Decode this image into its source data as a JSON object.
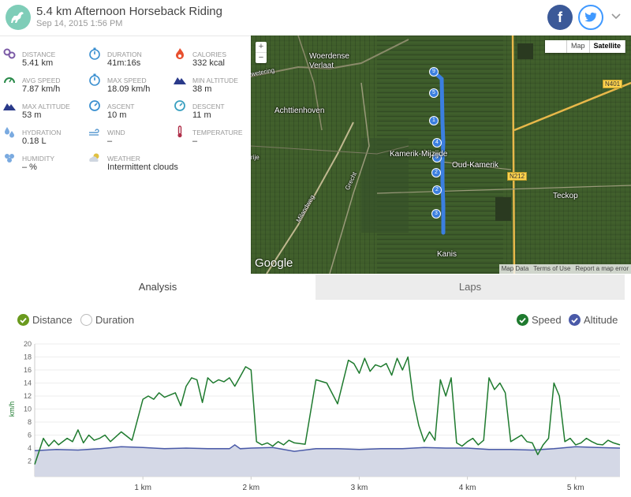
{
  "header": {
    "title": "5.4 km Afternoon Horseback Riding",
    "date": "Sep 14, 2015 1:56 PM",
    "facebook_label": "f"
  },
  "stats": [
    {
      "label": "DISTANCE",
      "value": "5.41 km",
      "icon": "distance-icon",
      "color": "#7b5aa6"
    },
    {
      "label": "DURATION",
      "value": "41m:16s",
      "icon": "stopwatch-icon",
      "color": "#3a8fd0"
    },
    {
      "label": "CALORIES",
      "value": "332 kcal",
      "icon": "flame-icon",
      "color": "#e8502f"
    },
    {
      "label": "AVG SPEED",
      "value": "7.87 km/h",
      "icon": "speedometer-icon",
      "color": "#2a8a4a"
    },
    {
      "label": "MAX SPEED",
      "value": "18.09 km/h",
      "icon": "stopwatch-icon",
      "color": "#3a8fd0"
    },
    {
      "label": "MIN ALTITUDE",
      "value": "38 m",
      "icon": "mountain-icon",
      "color": "#2a3a8a"
    },
    {
      "label": "MAX ALTITUDE",
      "value": "53 m",
      "icon": "mountain-icon",
      "color": "#2a3a8a"
    },
    {
      "label": "ASCENT",
      "value": "10 m",
      "icon": "gauge-icon",
      "color": "#3a8fd0"
    },
    {
      "label": "DESCENT",
      "value": "11 m",
      "icon": "gauge-icon",
      "color": "#3aa0c0"
    },
    {
      "label": "HYDRATION",
      "value": "0.18 L",
      "icon": "drops-icon",
      "color": "#7aaae0"
    },
    {
      "label": "WIND",
      "value": "–",
      "icon": "wind-icon",
      "color": "#5a9ad0"
    },
    {
      "label": "TEMPERATURE",
      "value": "–",
      "icon": "thermometer-icon",
      "color": "#b0304a"
    },
    {
      "label": "HUMIDITY",
      "value": "– %",
      "icon": "humidity-icon",
      "color": "#7aaae0"
    },
    {
      "label": "WEATHER",
      "value": "Intermittent clouds",
      "icon": "cloud-sun-icon",
      "color": "#e0c040"
    }
  ],
  "map": {
    "zoom_in": "+",
    "zoom_out": "−",
    "map_label": "Map",
    "satellite_label": "Satellite",
    "google": "Google",
    "footer": [
      "Map Data",
      "Terms of Use",
      "Report a map error"
    ],
    "places": [
      "Woerdense Verlaat",
      "Achttienhoven",
      "Kamerik-Mijzijde",
      "Oud-Kamerik",
      "Teckop",
      "Kanis",
      "Milandweg",
      "Grecht",
      "wetering",
      "rije"
    ],
    "road_signs": [
      "N401",
      "N212"
    ],
    "markers": [
      "9",
      "5",
      "1",
      "4",
      "8",
      "2",
      "2",
      "3"
    ]
  },
  "tabs": {
    "analysis": "Analysis",
    "laps": "Laps"
  },
  "controls": {
    "distance": "Distance",
    "duration": "Duration",
    "speed": "Speed",
    "altitude": "Altitude"
  },
  "colors": {
    "speed": "#1e7a2e",
    "altitude": "#4a5aa8",
    "altitude_fill": "#d4d8e6",
    "check_green": "#6a9a1e",
    "check_blue": "#4a5aa8"
  },
  "chart_data": {
    "type": "line",
    "ylabel": "km/h",
    "ylim": [
      0,
      20
    ],
    "yticks": [
      2,
      4,
      6,
      8,
      10,
      12,
      14,
      16,
      18,
      20
    ],
    "xlim": [
      0,
      5.41
    ],
    "xticks": [
      "1 km",
      "2 km",
      "3 km",
      "4 km",
      "5 km"
    ],
    "xtick_values": [
      1,
      2,
      3,
      4,
      5
    ],
    "series": [
      {
        "name": "Speed",
        "x": [
          0.0,
          0.05,
          0.08,
          0.1,
          0.13,
          0.18,
          0.22,
          0.3,
          0.35,
          0.4,
          0.45,
          0.5,
          0.55,
          0.6,
          0.65,
          0.7,
          0.8,
          0.9,
          1.0,
          1.05,
          1.1,
          1.15,
          1.2,
          1.3,
          1.35,
          1.4,
          1.45,
          1.5,
          1.55,
          1.6,
          1.65,
          1.7,
          1.75,
          1.8,
          1.85,
          1.9,
          1.95,
          2.0,
          2.05,
          2.1,
          2.15,
          2.2,
          2.25,
          2.3,
          2.35,
          2.4,
          2.5,
          2.6,
          2.7,
          2.8,
          2.9,
          2.95,
          3.0,
          3.05,
          3.1,
          3.15,
          3.2,
          3.25,
          3.3,
          3.35,
          3.4,
          3.45,
          3.5,
          3.55,
          3.6,
          3.65,
          3.7,
          3.75,
          3.8,
          3.85,
          3.9,
          3.95,
          4.0,
          4.05,
          4.1,
          4.15,
          4.2,
          4.25,
          4.3,
          4.35,
          4.4,
          4.5,
          4.55,
          4.6,
          4.65,
          4.7,
          4.75,
          4.8,
          4.85,
          4.9,
          4.95,
          5.0,
          5.05,
          5.1,
          5.15,
          5.2,
          5.25,
          5.3,
          5.35,
          5.41
        ],
        "values": [
          1.5,
          4.0,
          5.5,
          5.0,
          4.3,
          5.2,
          4.5,
          5.5,
          5.0,
          6.8,
          4.8,
          6.0,
          5.2,
          5.5,
          6.0,
          5.0,
          6.5,
          5.2,
          11.5,
          12.0,
          11.5,
          12.5,
          11.8,
          12.5,
          10.5,
          13.5,
          14.8,
          14.5,
          11.0,
          14.8,
          14.0,
          14.5,
          14.2,
          14.8,
          13.5,
          15.0,
          16.5,
          16.0,
          5.0,
          4.5,
          4.8,
          4.3,
          5.0,
          4.5,
          5.2,
          4.8,
          4.6,
          14.5,
          14.0,
          10.8,
          17.5,
          17.0,
          15.5,
          17.8,
          15.8,
          16.8,
          16.5,
          17.0,
          15.2,
          17.8,
          16.0,
          18.0,
          11.5,
          7.5,
          5.0,
          6.5,
          5.2,
          14.5,
          12.0,
          14.8,
          4.8,
          4.3,
          5.0,
          5.5,
          4.5,
          5.2,
          14.8,
          13.0,
          14.0,
          12.5,
          5.0,
          6.0,
          5.0,
          4.8,
          3.0,
          4.5,
          5.5,
          14.0,
          12.0,
          5.0,
          5.5,
          4.5,
          4.8,
          5.5,
          5.0,
          4.6,
          4.5,
          5.2,
          4.8,
          4.5
        ]
      },
      {
        "name": "Altitude",
        "x": [
          0.0,
          0.2,
          0.4,
          0.6,
          0.8,
          1.0,
          1.2,
          1.4,
          1.6,
          1.8,
          1.85,
          1.9,
          2.0,
          2.2,
          2.4,
          2.6,
          2.8,
          3.0,
          3.2,
          3.4,
          3.6,
          3.8,
          4.0,
          4.2,
          4.4,
          4.6,
          4.8,
          5.0,
          5.2,
          5.41
        ],
        "values": [
          3.6,
          3.8,
          3.7,
          3.9,
          4.2,
          4.1,
          3.9,
          4.0,
          3.9,
          3.9,
          4.5,
          3.9,
          4.0,
          4.1,
          3.5,
          3.9,
          3.9,
          3.8,
          3.9,
          3.9,
          4.1,
          4.0,
          4.0,
          3.8,
          3.8,
          3.7,
          3.9,
          4.2,
          4.1,
          4.0
        ]
      }
    ]
  }
}
